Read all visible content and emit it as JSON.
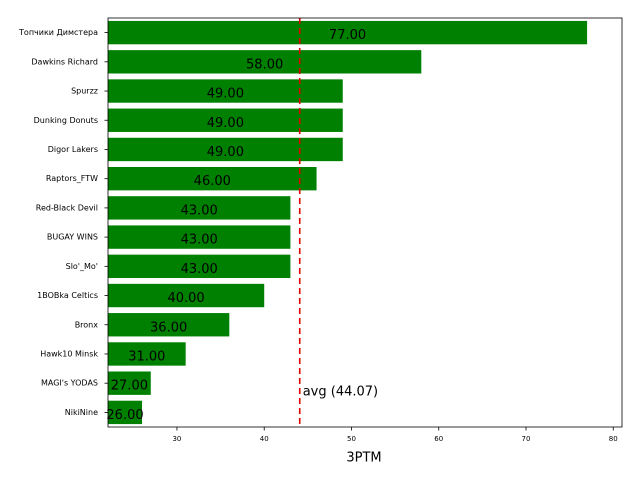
{
  "chart_data": {
    "type": "barh",
    "categories": [
      "Топчики Димстера",
      "Dawkins Richard",
      "Spurzz",
      "Dunking Donuts",
      "Digor Lakers",
      "Raptors_FTW",
      "Red-Black Devil",
      "BUGAY WINS",
      "Slo'_Mo'",
      "1BOBka Celtics",
      "Bronx",
      "Hawk10 Minsk",
      "MAGI's YODAS",
      "NikiNine"
    ],
    "values": [
      77,
      58,
      49,
      49,
      49,
      46,
      43,
      43,
      43,
      40,
      36,
      31,
      27,
      26
    ],
    "value_labels": [
      "77.00",
      "58.00",
      "49.00",
      "49.00",
      "49.00",
      "46.00",
      "43.00",
      "43.00",
      "43.00",
      "40.00",
      "36.00",
      "31.00",
      "27.00",
      "26.00"
    ],
    "color": "#008000",
    "xlabel": "3PTM",
    "xlim": [
      22.1,
      81.0
    ],
    "xticks": [
      30,
      40,
      50,
      60,
      70,
      80
    ],
    "average": {
      "value": 44.07,
      "label": "avg (44.07)",
      "color": "#e00000"
    }
  }
}
